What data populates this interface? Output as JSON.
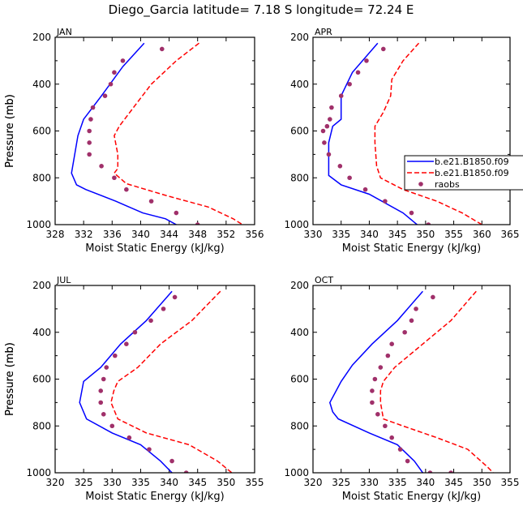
{
  "title": "Diego_Garcia   latitude= 7.18 S longitude= 72.24 E",
  "legend": {
    "entries": [
      {
        "label": "b.e21.B1850.f09",
        "style": "solid",
        "color": "#0000ff"
      },
      {
        "label": "b.e21.B1850.f09",
        "style": "dashed",
        "color": "#ff0000"
      },
      {
        "label": "raobs",
        "style": "marker",
        "color": "#a0306a"
      }
    ]
  },
  "chart_data": [
    {
      "type": "line",
      "panel": "JAN",
      "xlabel": "Moist Static Energy (kJ/kg)",
      "ylabel": "Pressure (mb)",
      "xlim": [
        328,
        356
      ],
      "ylim": [
        1000,
        200
      ],
      "xticks": [
        328,
        332,
        336,
        340,
        344,
        348,
        352,
        356
      ],
      "yticks": [
        200,
        400,
        600,
        800,
        1000
      ],
      "series": [
        {
          "name": "b.e21.B1850.f09",
          "style": "solid",
          "color": "#0000ff",
          "x": [
            340.5,
            337.5,
            334.5,
            332.0,
            331.2,
            330.3,
            331.0,
            332.3,
            336.5,
            340.3,
            343.5,
            345.0
          ],
          "y": [
            225,
            325,
            450,
            550,
            620,
            780,
            830,
            850,
            900,
            950,
            975,
            1000
          ]
        },
        {
          "name": "b.e21.B1850.f09",
          "style": "dashed",
          "color": "#ff0000",
          "x": [
            348.2,
            345.0,
            341.5,
            339.0,
            337.0,
            336.3,
            336.8,
            336.8,
            336.3,
            338.0,
            343.5,
            349.5,
            353.0,
            354.3
          ],
          "y": [
            225,
            300,
            400,
            500,
            580,
            620,
            700,
            760,
            780,
            825,
            875,
            925,
            975,
            1000
          ]
        },
        {
          "name": "raobs",
          "style": "marker",
          "color": "#a0306a",
          "x": [
            343.0,
            337.5,
            336.3,
            335.8,
            335.0,
            333.3,
            333.0,
            332.8,
            332.8,
            332.8,
            334.5,
            336.3,
            338.0,
            341.5,
            345.0,
            348.0
          ],
          "y": [
            250,
            300,
            350,
            400,
            450,
            500,
            550,
            600,
            650,
            700,
            750,
            800,
            850,
            900,
            950,
            1000
          ]
        }
      ]
    },
    {
      "type": "line",
      "panel": "APR",
      "xlabel": "Moist Static Energy (kJ/kg)",
      "ylabel": "Pressure (mb)",
      "xlim": [
        330,
        365
      ],
      "ylim": [
        1000,
        200
      ],
      "xticks": [
        330,
        335,
        340,
        345,
        350,
        355,
        360,
        365
      ],
      "yticks": [
        200,
        400,
        600,
        800,
        1000
      ],
      "series": [
        {
          "name": "b.e21.B1850.f09",
          "style": "solid",
          "color": "#0000ff",
          "x": [
            341.5,
            337.0,
            335.0,
            335.0,
            333.5,
            332.8,
            332.8,
            332.8,
            335.0,
            340.0,
            346.0,
            348.5
          ],
          "y": [
            225,
            350,
            450,
            550,
            580,
            650,
            750,
            790,
            830,
            870,
            950,
            1000
          ]
        },
        {
          "name": "b.e21.B1850.f09",
          "style": "dashed",
          "color": "#ff0000",
          "x": [
            348.8,
            346.0,
            344.0,
            343.8,
            342.5,
            341.0,
            341.0,
            341.3,
            342.0,
            346.0,
            352.0,
            356.5,
            360.0
          ],
          "y": [
            225,
            300,
            380,
            450,
            520,
            580,
            650,
            750,
            800,
            850,
            900,
            950,
            1000
          ]
        },
        {
          "name": "raobs",
          "style": "marker",
          "color": "#a0306a",
          "x": [
            342.5,
            339.5,
            338.0,
            336.5,
            335.0,
            333.3,
            333.0,
            332.5,
            331.8,
            332.0,
            332.8,
            334.8,
            336.5,
            339.3,
            342.8,
            347.5,
            350.5
          ],
          "y": [
            250,
            300,
            350,
            400,
            450,
            500,
            550,
            580,
            600,
            650,
            700,
            750,
            800,
            850,
            900,
            950,
            1000
          ]
        }
      ]
    },
    {
      "type": "line",
      "panel": "JUL",
      "xlabel": "Moist Static Energy (kJ/kg)",
      "ylabel": "Pressure (mb)",
      "xlim": [
        320,
        355
      ],
      "ylim": [
        1000,
        200
      ],
      "xticks": [
        320,
        325,
        330,
        335,
        340,
        345,
        350,
        355
      ],
      "yticks": [
        200,
        400,
        600,
        800,
        1000
      ],
      "series": [
        {
          "name": "b.e21.B1850.f09",
          "style": "solid",
          "color": "#0000ff",
          "x": [
            340.5,
            336.0,
            331.5,
            328.0,
            325.0,
            324.3,
            325.5,
            330.0,
            335.0,
            338.5,
            340.5
          ],
          "y": [
            225,
            350,
            450,
            550,
            610,
            700,
            770,
            830,
            880,
            950,
            1000
          ]
        },
        {
          "name": "b.e21.B1850.f09",
          "style": "dashed",
          "color": "#ff0000",
          "x": [
            349.0,
            344.0,
            338.5,
            334.5,
            331.0,
            330.3,
            329.8,
            331.0,
            336.0,
            343.5,
            348.5,
            351.0
          ],
          "y": [
            225,
            350,
            450,
            550,
            610,
            650,
            700,
            770,
            830,
            880,
            950,
            1000
          ]
        },
        {
          "name": "raobs",
          "style": "marker",
          "color": "#a0306a",
          "x": [
            341.0,
            339.0,
            336.8,
            334.0,
            332.5,
            330.5,
            329.0,
            328.5,
            328.0,
            328.0,
            328.5,
            330.0,
            333.0,
            336.5,
            340.5,
            343.0
          ],
          "y": [
            250,
            300,
            350,
            400,
            450,
            500,
            550,
            600,
            650,
            700,
            750,
            800,
            850,
            900,
            950,
            1000
          ]
        }
      ]
    },
    {
      "type": "line",
      "panel": "OCT",
      "xlabel": "Moist Static Energy (kJ/kg)",
      "ylabel": "Pressure (mb)",
      "xlim": [
        320,
        355
      ],
      "ylim": [
        1000,
        200
      ],
      "xticks": [
        320,
        325,
        330,
        335,
        340,
        345,
        350,
        355
      ],
      "yticks": [
        200,
        400,
        600,
        800,
        1000
      ],
      "series": [
        {
          "name": "b.e21.B1850.f09",
          "style": "solid",
          "color": "#0000ff",
          "x": [
            339.5,
            335.0,
            330.5,
            327.0,
            325.0,
            323.0,
            323.5,
            324.5,
            330.0,
            335.0,
            338.0,
            339.5
          ],
          "y": [
            225,
            350,
            450,
            540,
            610,
            700,
            740,
            770,
            830,
            880,
            950,
            1000
          ]
        },
        {
          "name": "b.e21.B1850.f09",
          "style": "dashed",
          "color": "#ff0000",
          "x": [
            349.0,
            344.5,
            339.5,
            334.5,
            332.5,
            332.0,
            332.0,
            332.5,
            336.0,
            342.0,
            347.5,
            351.0,
            352.0
          ],
          "y": [
            225,
            350,
            450,
            550,
            610,
            650,
            700,
            770,
            800,
            850,
            900,
            975,
            1000
          ]
        },
        {
          "name": "raobs",
          "style": "marker",
          "color": "#a0306a",
          "x": [
            341.3,
            338.3,
            337.5,
            336.3,
            334.0,
            333.3,
            332.0,
            331.0,
            330.5,
            330.5,
            331.5,
            332.8,
            334.0,
            335.5,
            336.8,
            340.8,
            344.5
          ],
          "y": [
            250,
            300,
            350,
            400,
            450,
            500,
            550,
            600,
            650,
            700,
            750,
            800,
            850,
            900,
            950,
            1000,
            1000
          ]
        }
      ]
    }
  ]
}
